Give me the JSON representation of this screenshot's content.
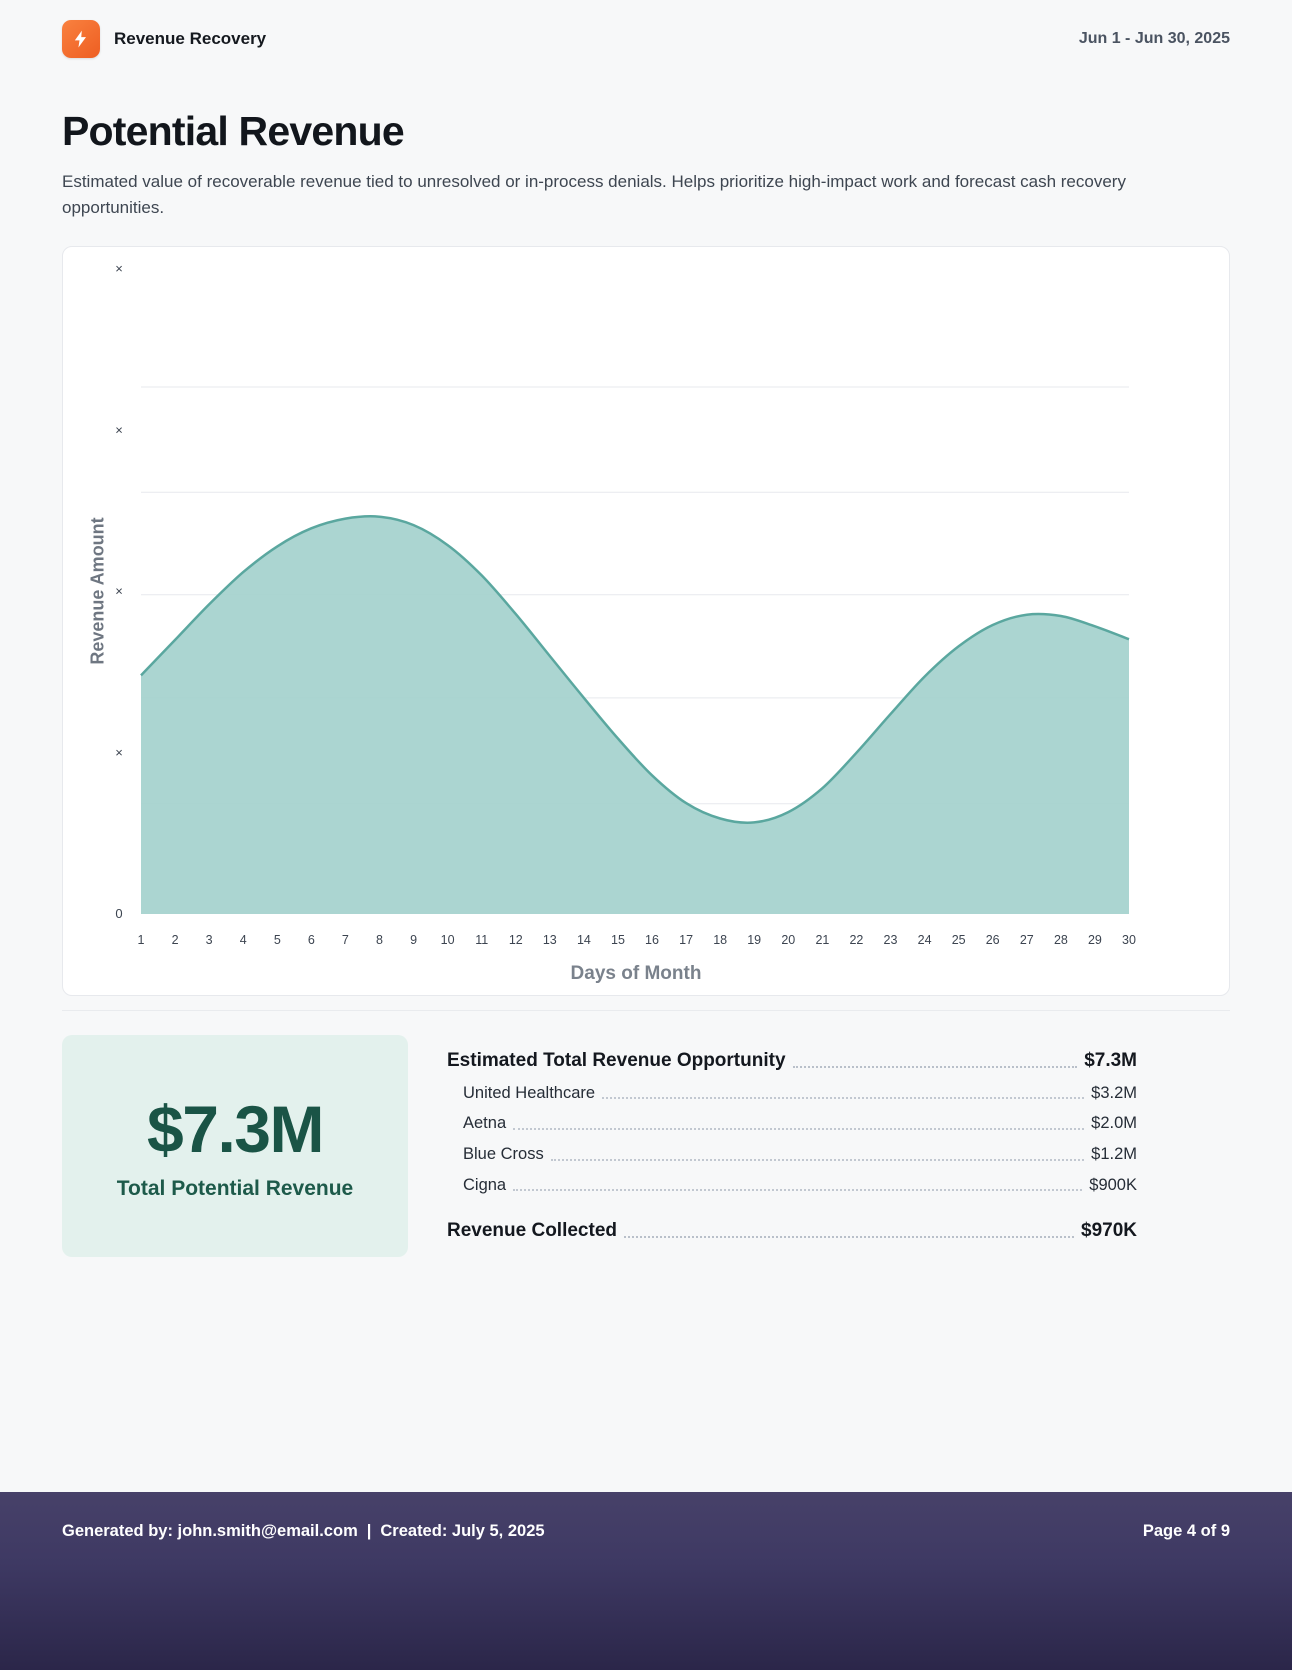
{
  "header": {
    "app_name": "Revenue Recovery",
    "date_range": "Jun 1 - Jun 30, 2025"
  },
  "page": {
    "title": "Potential Revenue",
    "description": "Estimated value of recoverable revenue tied to unresolved or in-process denials. Helps prioritize high-impact work and forecast cash recovery opportunities."
  },
  "chart_data": {
    "type": "area",
    "xlabel": "Days of Month",
    "ylabel": "Revenue Amount",
    "x": [
      1,
      2,
      3,
      4,
      5,
      6,
      7,
      8,
      9,
      10,
      11,
      12,
      13,
      14,
      15,
      16,
      17,
      18,
      19,
      20,
      21,
      22,
      23,
      24,
      25,
      26,
      27,
      28,
      29,
      30
    ],
    "values": [
      37,
      42.5,
      48,
      53,
      57,
      59.8,
      61.3,
      61.6,
      60.3,
      57.2,
      52.5,
      46.5,
      40,
      33.5,
      27.2,
      21.5,
      17.2,
      14.8,
      14.2,
      15.8,
      19.5,
      25,
      31,
      36.8,
      41.5,
      44.8,
      46.4,
      46.2,
      44.6,
      42.6
    ],
    "ylim": [
      0,
      100
    ],
    "y_tick_labels": [
      "×",
      "×",
      "×",
      "×",
      "0"
    ],
    "grid": true,
    "legend": "none",
    "fill_color": "#a6d3cf",
    "line_color": "#5aa79f"
  },
  "summary_card": {
    "value": "$7.3M",
    "label": "Total Potential Revenue"
  },
  "breakdown": {
    "total": {
      "label": "Estimated Total Revenue Opportunity",
      "value": "$7.3M"
    },
    "items": [
      {
        "label": "United Healthcare",
        "value": "$3.2M"
      },
      {
        "label": "Aetna",
        "value": "$2.0M"
      },
      {
        "label": "Blue Cross",
        "value": "$1.2M"
      },
      {
        "label": "Cigna",
        "value": "$900K"
      }
    ],
    "collected": {
      "label": "Revenue Collected",
      "value": "$970K"
    }
  },
  "footer": {
    "generated_by": "Generated by: john.smith@email.com",
    "separator": "|",
    "created": "Created: July 5, 2025",
    "page_info": "Page 4 of 9"
  }
}
